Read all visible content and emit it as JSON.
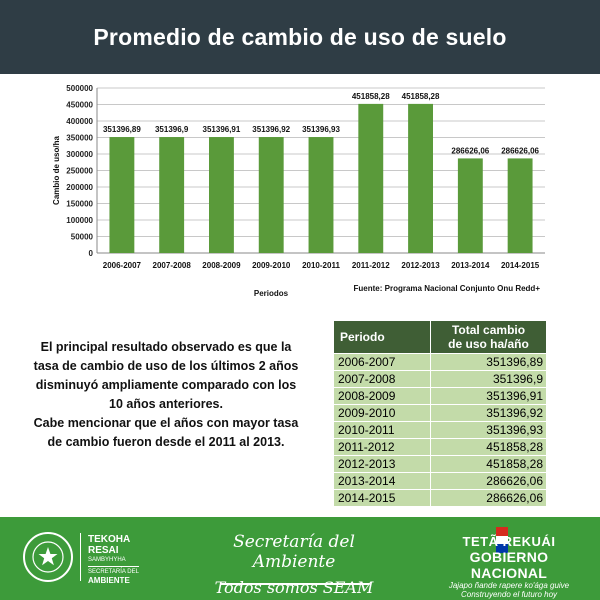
{
  "header": {
    "title": "Promedio de cambio de uso de suelo"
  },
  "chart_data": {
    "type": "bar",
    "categories": [
      "2006-2007",
      "2007-2008",
      "2008-2009",
      "2009-2010",
      "2010-2011",
      "2011-2012",
      "2012-2013",
      "2013-2014",
      "2014-2015"
    ],
    "values": [
      351396.89,
      351396.9,
      351396.91,
      351396.92,
      351396.93,
      451858.28,
      451858.28,
      286626.06,
      286626.06
    ],
    "data_labels": [
      "351396,89",
      "351396,9",
      "351396,91",
      "351396,92",
      "351396,93",
      "451858,28",
      "451858,28",
      "286626,06",
      "286626,06"
    ],
    "ylabel": "Cambio de uso/ha",
    "xlabel": "Periodos",
    "ylim": [
      0,
      500000
    ],
    "yticks": [
      0,
      50000,
      100000,
      150000,
      200000,
      250000,
      300000,
      350000,
      400000,
      450000,
      500000
    ],
    "grid": true,
    "bar_color": "#5a9a3a",
    "source": "Fuente: Programa Nacional  Conjunto Onu Redd+"
  },
  "summary": {
    "line1": "El principal resultado observado es que la",
    "line2": "tasa de cambio de uso de los últimos 2 años",
    "line3": "disminuyó ampliamente comparado con los",
    "line4": "10 años anteriores.",
    "line5": "Cabe  mencionar que el años con mayor tasa",
    "line6": "de cambio fueron desde el 2011 al 2013."
  },
  "table": {
    "headers": {
      "period": "Periodo",
      "total1": "Total cambio",
      "total2": "de uso ha/año"
    },
    "rows": [
      {
        "period": "2006-2007",
        "value": "351396,89"
      },
      {
        "period": "2007-2008",
        "value": "351396,9"
      },
      {
        "period": "2008-2009",
        "value": "351396,91"
      },
      {
        "period": "2009-2010",
        "value": "351396,92"
      },
      {
        "period": "2010-2011",
        "value": "351396,93"
      },
      {
        "period": "2011-2012",
        "value": "451858,28"
      },
      {
        "period": "2012-2013",
        "value": "451858,28"
      },
      {
        "period": "2013-2014",
        "value": "286626,06"
      },
      {
        "period": "2014-2015",
        "value": "286626,06"
      }
    ]
  },
  "footer": {
    "tekoha1": "TEKOHA",
    "tekoha2": "RESAI",
    "tekoha3": "SAMBYHYHA",
    "secretaria_small": "SECRETARÍA DEL",
    "ambiente_small": "AMBIENTE",
    "secretaria_title": "Secretaría del Ambiente",
    "seam_slogan": "Todos somos SEAM",
    "gob1": "TETÃ REKUÁI",
    "gob2": "GOBIERNO NACIONAL",
    "gob3": "Jajapo ñande rapere ko'ága guive",
    "gob4": "Construyendo el futuro hoy",
    "seal_icon": "republic-seal-icon",
    "flag_icon": "flag-icon"
  }
}
